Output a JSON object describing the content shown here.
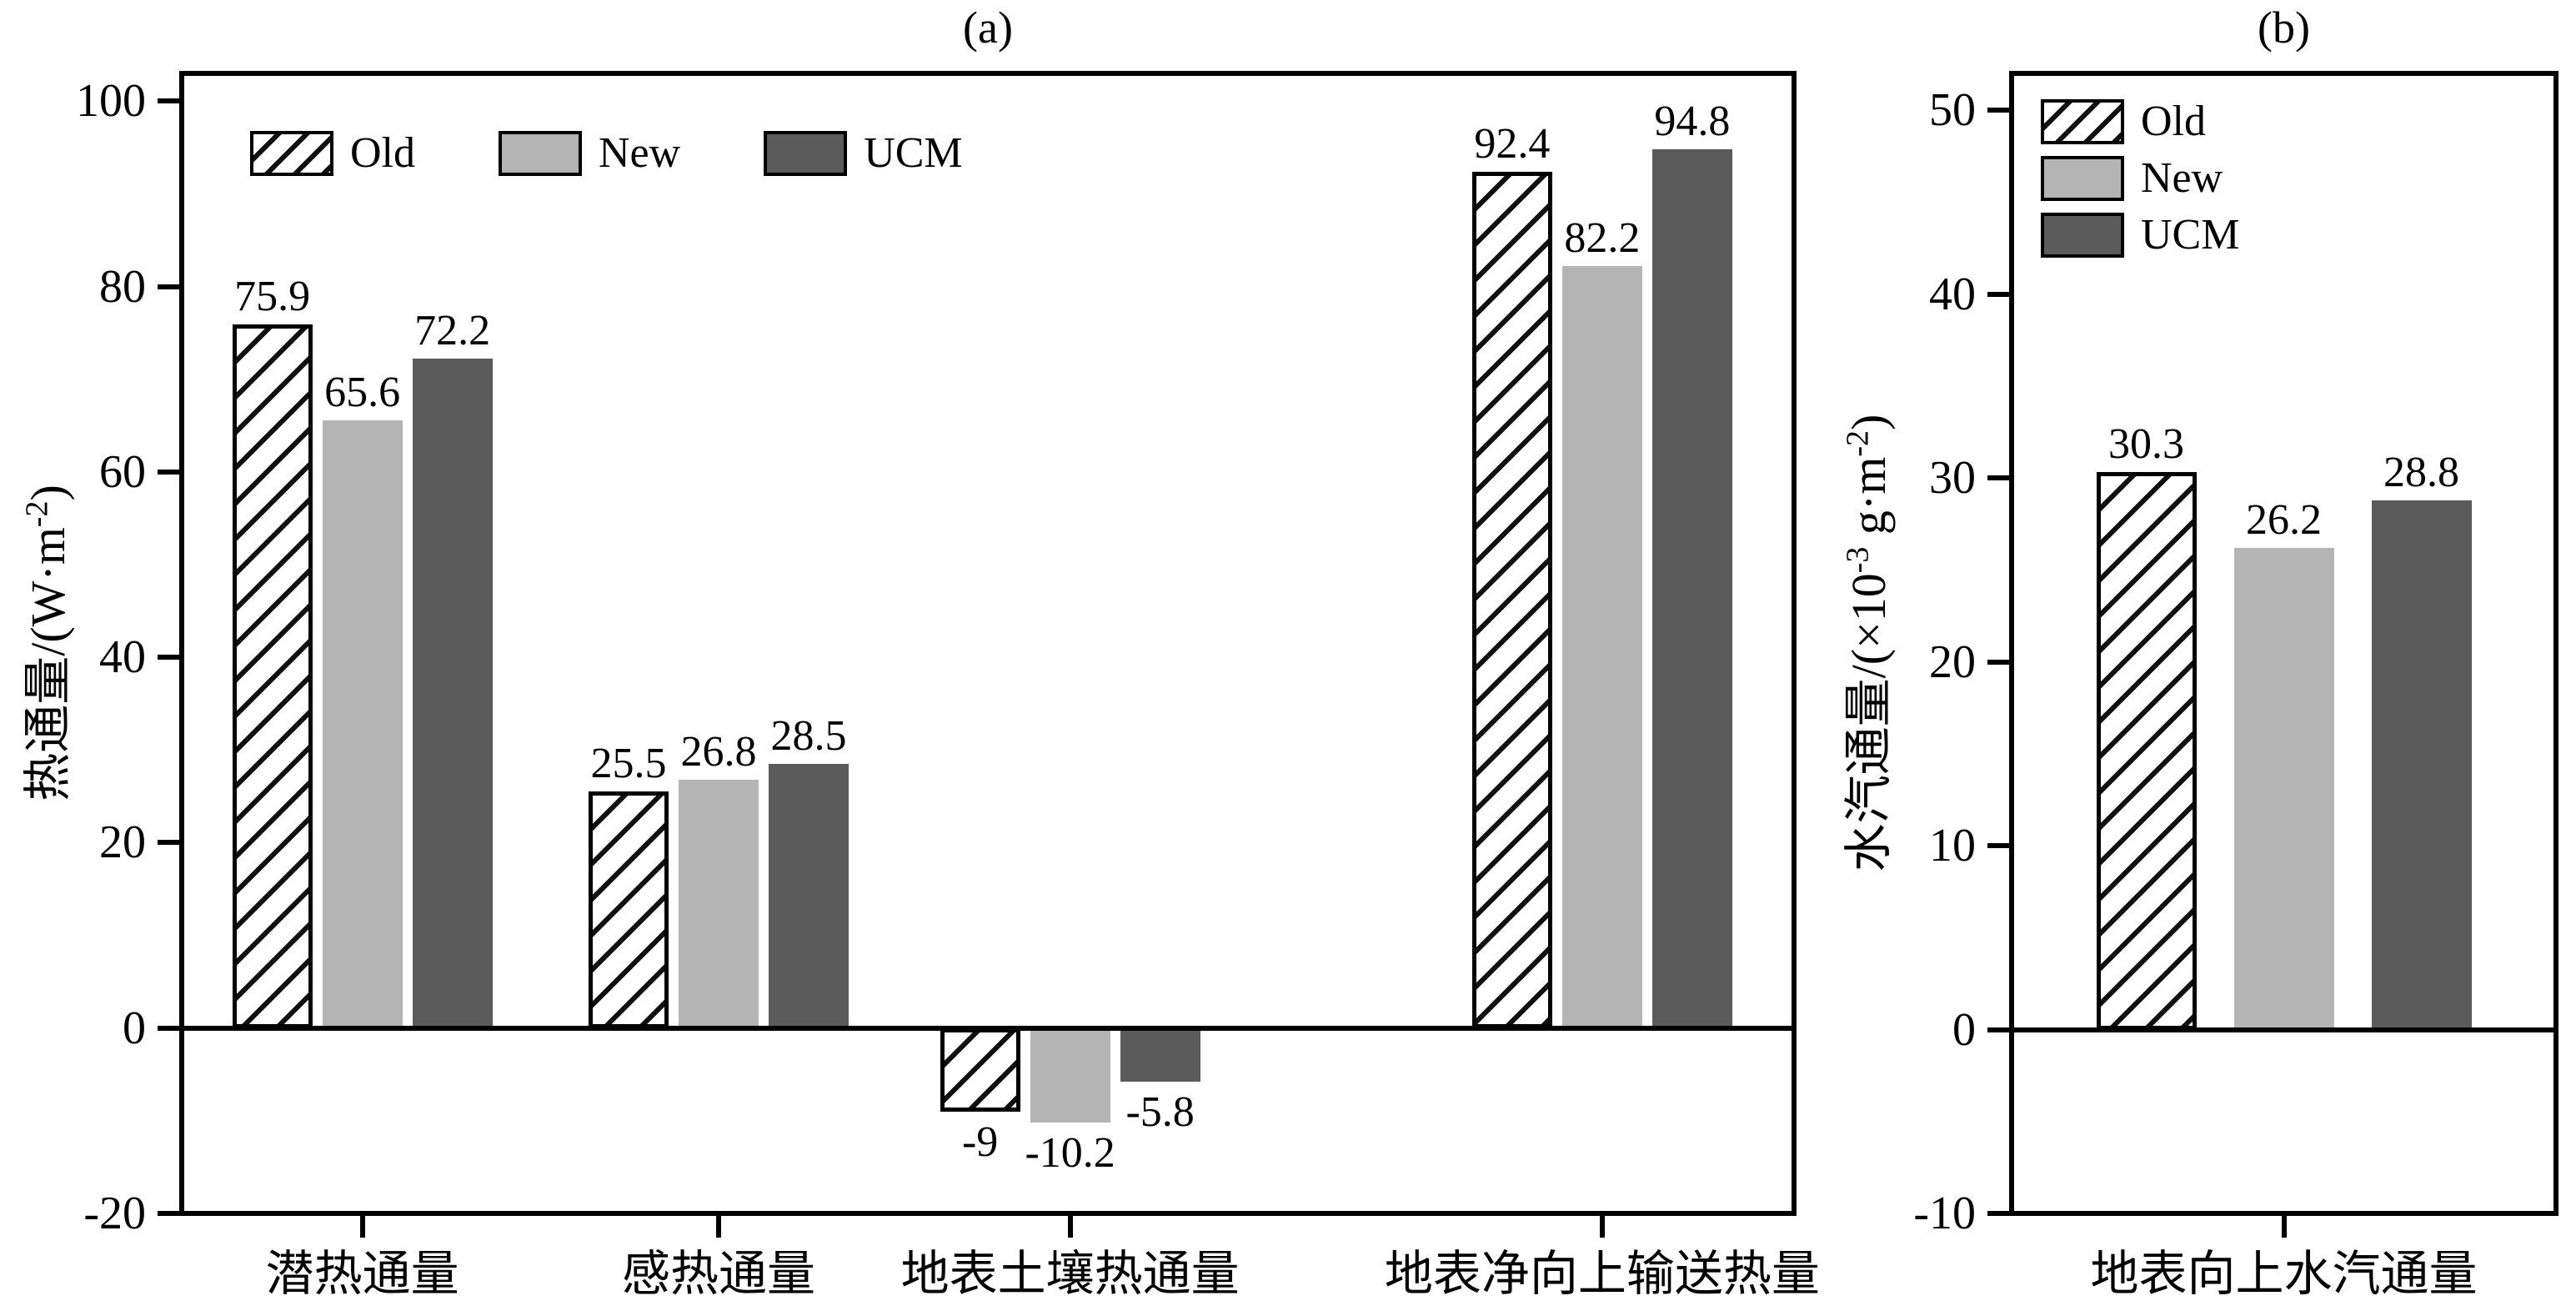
{
  "colors": {
    "background": "#ffffff",
    "axis": "#000000",
    "text": "#000000",
    "old_fill": "#ffffff",
    "hatch": "#111111",
    "new_fill": "#b4b4b4",
    "ucm_fill": "#5b5b5b"
  },
  "chart_data": [
    {
      "type": "bar",
      "panel": "a",
      "title": "(a)",
      "categories": [
        "潜热通量",
        "感热通量",
        "地表土壤热通量",
        "地表净向上输送热量"
      ],
      "series": [
        {
          "name": "Old",
          "values": [
            75.9,
            25.5,
            -9,
            92.4
          ]
        },
        {
          "name": "New",
          "values": [
            65.6,
            26.8,
            -10.2,
            82.2
          ]
        },
        {
          "name": "UCM",
          "values": [
            72.2,
            28.5,
            -5.8,
            94.8
          ]
        }
      ],
      "ylabel_parts": [
        {
          "text": "热通量/(W·m"
        },
        {
          "text": "-2",
          "sup": true
        },
        {
          "text": ")"
        }
      ],
      "yticks": [
        100,
        80,
        60,
        40,
        20,
        0,
        -20
      ],
      "ylim": [
        -20,
        103
      ],
      "grid": false,
      "legend": {
        "labels": [
          "Old",
          "New",
          "UCM"
        ],
        "orientation": "horizontal",
        "position": "top-left"
      }
    },
    {
      "type": "bar",
      "panel": "b",
      "title": "(b)",
      "categories": [
        "地表向上水汽通量"
      ],
      "series": [
        {
          "name": "Old",
          "values": [
            30.3
          ]
        },
        {
          "name": "New",
          "values": [
            26.2
          ]
        },
        {
          "name": "UCM",
          "values": [
            28.8
          ]
        }
      ],
      "ylabel_parts": [
        {
          "text": "水汽通量/(×10"
        },
        {
          "text": "-3",
          "sup": true
        },
        {
          "text": " g·m"
        },
        {
          "text": "-2",
          "sup": true
        },
        {
          "text": ")"
        }
      ],
      "yticks": [
        50,
        40,
        30,
        20,
        10,
        0,
        -10
      ],
      "ylim": [
        -10,
        52
      ],
      "grid": false,
      "legend": {
        "labels": [
          "Old",
          "New",
          "UCM"
        ],
        "orientation": "vertical",
        "position": "top-left"
      }
    }
  ]
}
